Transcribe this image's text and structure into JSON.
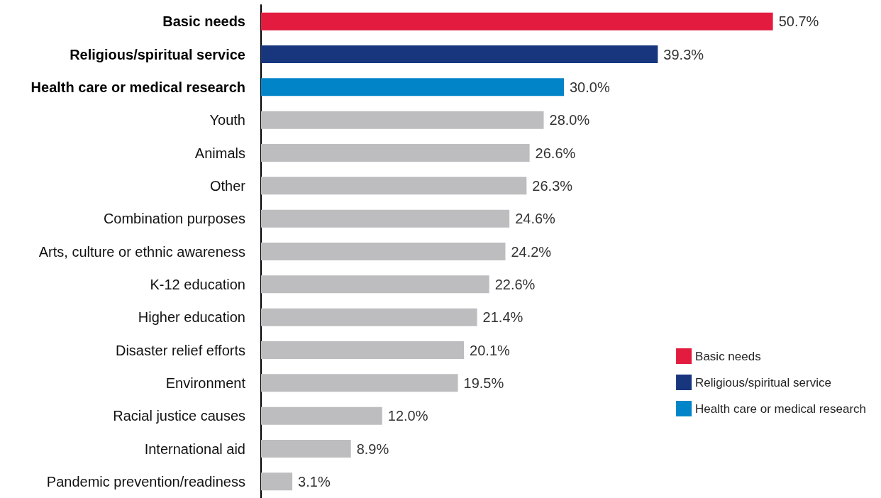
{
  "chart_data": {
    "type": "bar",
    "orientation": "horizontal",
    "stacked": true,
    "legend": "right",
    "categories": [
      "Basic needs",
      "Religious/spiritual service",
      "Health care or medical research",
      "Youth",
      "Animals",
      "Other",
      "Combination purposes",
      "Arts, culture or ethnic awareness",
      "K-12 education",
      "Higher education",
      "Disaster relief efforts",
      "Environment",
      "Racial justice causes",
      "International aid",
      "Pandemic prevention/readiness"
    ],
    "series": [
      {
        "name": "Basic needs",
        "color": "#e31b3f",
        "values": [
          50.7,
          null,
          null,
          null,
          null,
          null,
          null,
          null,
          null,
          null,
          null,
          null,
          null,
          null,
          null
        ],
        "value_labels": [
          "50.7%",
          null,
          null,
          null,
          null,
          null,
          null,
          null,
          null,
          null,
          null,
          null,
          null,
          null,
          null
        ]
      },
      {
        "name": "Religious/spiritual service",
        "color": "#17367e",
        "values": [
          null,
          39.3,
          null,
          null,
          null,
          null,
          null,
          null,
          null,
          null,
          null,
          null,
          null,
          null,
          null
        ],
        "value_labels": [
          null,
          "39.3%",
          null,
          null,
          null,
          null,
          null,
          null,
          null,
          null,
          null,
          null,
          null,
          null,
          null
        ]
      },
      {
        "name": "Health care or medical research",
        "color": "#0284c9",
        "values": [
          null,
          null,
          30.0,
          null,
          null,
          null,
          null,
          null,
          null,
          null,
          null,
          null,
          null,
          null,
          null
        ],
        "value_labels": [
          null,
          null,
          "30.0%",
          null,
          null,
          null,
          null,
          null,
          null,
          null,
          null,
          null,
          null,
          null,
          null
        ]
      },
      {
        "color": "#bdbdbf",
        "values": [
          null,
          null,
          null,
          28.0,
          26.6,
          26.3,
          24.6,
          24.2,
          22.6,
          21.4,
          20.1,
          19.5,
          12.0,
          8.9,
          3.1
        ],
        "value_labels": [
          null,
          null,
          null,
          "28.0%",
          "26.6%",
          "26.3%",
          "24.6%",
          "24.2%",
          "22.6%",
          "21.4%",
          "20.1%",
          "19.5%",
          "12.0%",
          "8.9%",
          "3.1%"
        ]
      }
    ]
  }
}
